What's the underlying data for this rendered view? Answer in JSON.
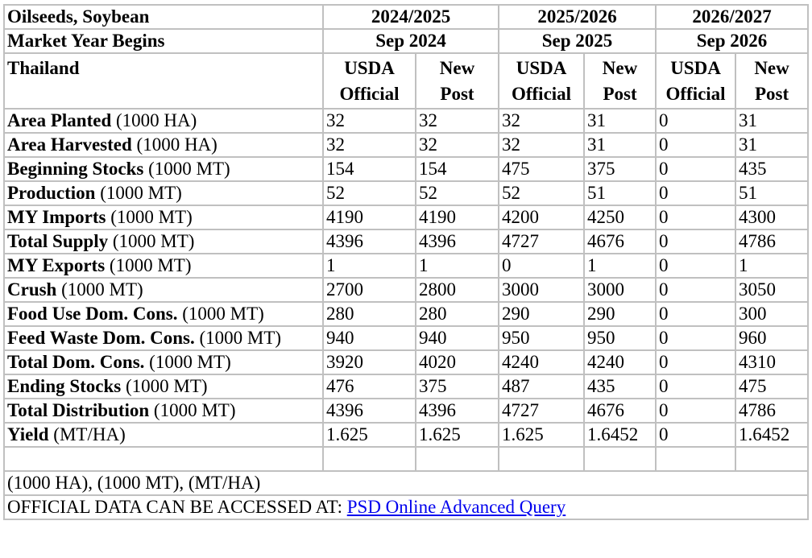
{
  "header": {
    "commodity": "Oilseeds, Soybean",
    "market_year_label": "Market Year Begins",
    "country": "Thailand",
    "years": [
      {
        "year": "2024/2025",
        "begins": "Sep 2024"
      },
      {
        "year": "2025/2026",
        "begins": "Sep 2025"
      },
      {
        "year": "2026/2027",
        "begins": "Sep 2026"
      }
    ],
    "col_usda": [
      "USDA",
      "Official"
    ],
    "col_new": [
      "New",
      "Post"
    ]
  },
  "rows": [
    {
      "label": "Area Planted",
      "unit": "(1000 HA)",
      "values": [
        "32",
        "32",
        "32",
        "31",
        "0",
        "31"
      ]
    },
    {
      "label": "Area Harvested",
      "unit": "(1000 HA)",
      "values": [
        "32",
        "32",
        "32",
        "31",
        "0",
        "31"
      ]
    },
    {
      "label": "Beginning Stocks",
      "unit": "(1000 MT)",
      "values": [
        "154",
        "154",
        "475",
        "375",
        "0",
        "435"
      ]
    },
    {
      "label": "Production",
      "unit": "(1000 MT)",
      "values": [
        "52",
        "52",
        "52",
        "51",
        "0",
        "51"
      ]
    },
    {
      "label": "MY Imports",
      "unit": "(1000 MT)",
      "values": [
        "4190",
        "4190",
        "4200",
        "4250",
        "0",
        "4300"
      ]
    },
    {
      "label": "Total Supply",
      "unit": "(1000 MT)",
      "values": [
        "4396",
        "4396",
        "4727",
        "4676",
        "0",
        "4786"
      ]
    },
    {
      "label": "MY Exports",
      "unit": "(1000 MT)",
      "values": [
        "1",
        "1",
        "0",
        "1",
        "0",
        "1"
      ]
    },
    {
      "label": "Crush",
      "unit": "(1000 MT)",
      "values": [
        "2700",
        "2800",
        "3000",
        "3000",
        "0",
        "3050"
      ]
    },
    {
      "label": "Food Use Dom. Cons.",
      "unit": "(1000 MT)",
      "values": [
        "280",
        "280",
        "290",
        "290",
        "0",
        "300"
      ]
    },
    {
      "label": "Feed Waste Dom. Cons.",
      "unit": "(1000 MT)",
      "values": [
        "940",
        "940",
        "950",
        "950",
        "0",
        "960"
      ]
    },
    {
      "label": "Total Dom. Cons.",
      "unit": "(1000 MT)",
      "values": [
        "3920",
        "4020",
        "4240",
        "4240",
        "0",
        "4310"
      ]
    },
    {
      "label": "Ending Stocks",
      "unit": "(1000 MT)",
      "values": [
        "476",
        "375",
        "487",
        "435",
        "0",
        "475"
      ]
    },
    {
      "label": "Total Distribution",
      "unit": "(1000 MT)",
      "values": [
        "4396",
        "4396",
        "4727",
        "4676",
        "0",
        "4786"
      ]
    },
    {
      "label": "Yield",
      "unit": "(MT/HA)",
      "values": [
        "1.625",
        "1.625",
        "1.625",
        "1.6452",
        "0",
        "1.6452"
      ]
    }
  ],
  "footer": {
    "units_note": "(1000 HA), (1000 MT), (MT/HA)",
    "access_text": "OFFICIAL DATA CAN BE ACCESSED AT:",
    "link_text": "PSD Online Advanced Query",
    "link_color": "#0000ee"
  }
}
